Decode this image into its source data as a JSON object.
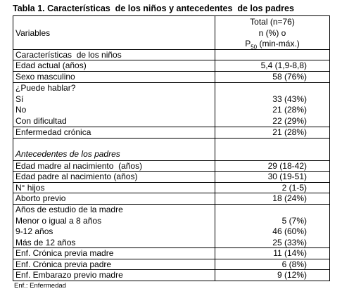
{
  "title": "Tabla 1. Características  de los niños y antecedentes  de los padres",
  "table": {
    "header": {
      "variable": "Variables",
      "total": "Total (n=76)",
      "stat": "n (%) o",
      "median_symbol": "P",
      "median_subscript": "50",
      "median_range": " (min-máx.)"
    },
    "rows": [
      {
        "lines": [
          {
            "label": "Características  de los niños"
          }
        ]
      },
      {
        "lines": [
          {
            "label": "Edad actual (años)",
            "value": "5,4 (1,9-8,8)"
          }
        ]
      },
      {
        "lines": [
          {
            "label": "Sexo masculino",
            "value": "58 (76%)"
          }
        ]
      },
      {
        "lines": [
          {
            "label": "¿Puede hablar?"
          },
          {
            "label": "Sí",
            "value": "33 (43%)"
          },
          {
            "label": "No",
            "value": "21 (28%)"
          },
          {
            "label": "Con dificultad",
            "value": "22 (29%)"
          }
        ]
      },
      {
        "lines": [
          {
            "label": "Enfermedad crónica",
            "value": "21 (28%)"
          }
        ]
      },
      {
        "lines": [
          {
            "label": "Antecedentes de los padres"
          }
        ]
      },
      {
        "lines": [
          {
            "label": "Edad madre al nacimiento  (años)",
            "value": "29 (18-42)"
          }
        ]
      },
      {
        "lines": [
          {
            "label": "Edad padre al nacimiento (años)",
            "value": "30 (19-51)"
          }
        ]
      },
      {
        "lines": [
          {
            "label": "N° hijos",
            "value": "2 (1-5)"
          }
        ]
      },
      {
        "lines": [
          {
            "label": "Aborto previo",
            "value": "18 (24%)"
          }
        ]
      },
      {
        "lines": [
          {
            "label": "Años de estudio de la madre"
          },
          {
            "label": "Menor o igual a 8 años",
            "value": "5 (7%)"
          },
          {
            "label": "9-12 años",
            "value": "46 (60%)"
          },
          {
            "label": "Más de 12 años",
            "value": "25 (33%)"
          }
        ]
      },
      {
        "lines": [
          {
            "label": "Enf. Crónica previa madre",
            "value": "11 (14%)"
          }
        ]
      },
      {
        "lines": [
          {
            "label": "Enf. Crónica previa padre",
            "value": "6 (8%)"
          }
        ]
      },
      {
        "lines": [
          {
            "label": "Enf. Embarazo previo madre",
            "value": "9 (12%)"
          }
        ]
      }
    ]
  },
  "footnote": "Enf.: Enfermedad"
}
